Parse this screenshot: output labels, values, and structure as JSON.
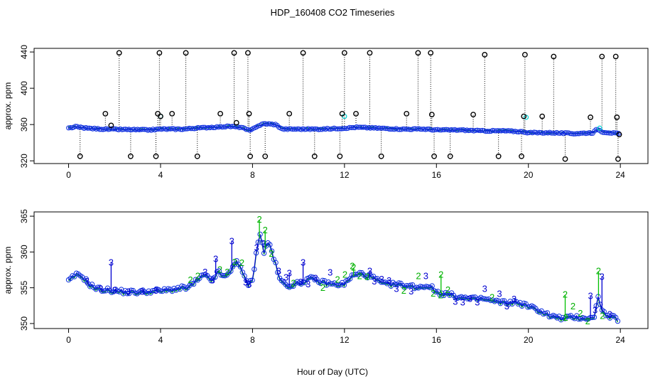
{
  "title": "HDP_160408  CO2 Timeseries",
  "xlabel": "Hour of Day (UTC)",
  "chart_data": [
    {
      "type": "scatter",
      "panel": "top",
      "ylabel": "approx. ppm",
      "xlim": [
        -1.5,
        25.2
      ],
      "ylim": [
        317,
        444
      ],
      "xticks": [
        0,
        4,
        8,
        12,
        16,
        20,
        24
      ],
      "yticks": [
        320,
        360,
        400,
        440
      ],
      "baseline": [
        [
          0.0,
          356
        ],
        [
          0.3,
          357.5
        ],
        [
          0.8,
          356
        ],
        [
          1.5,
          355
        ],
        [
          2.5,
          354.5
        ],
        [
          3.5,
          354
        ],
        [
          4.0,
          355
        ],
        [
          5.0,
          355
        ],
        [
          5.5,
          356
        ],
        [
          6.2,
          357
        ],
        [
          7.0,
          358
        ],
        [
          7.5,
          357
        ],
        [
          7.9,
          353
        ],
        [
          8.1,
          357
        ],
        [
          8.5,
          361
        ],
        [
          9.0,
          360
        ],
        [
          9.3,
          355
        ],
        [
          10.0,
          355
        ],
        [
          11.0,
          355
        ],
        [
          12.0,
          356
        ],
        [
          12.5,
          357
        ],
        [
          13.5,
          356
        ],
        [
          14.5,
          355
        ],
        [
          15.5,
          355
        ],
        [
          16.0,
          354
        ],
        [
          17.0,
          354
        ],
        [
          18.0,
          353
        ],
        [
          19.0,
          353
        ],
        [
          19.8,
          352
        ],
        [
          20.0,
          351
        ],
        [
          21.0,
          351
        ],
        [
          22.0,
          350
        ],
        [
          22.8,
          351
        ],
        [
          23.0,
          355
        ],
        [
          23.2,
          352
        ],
        [
          23.9,
          350
        ]
      ],
      "spikes": [
        {
          "x": 0.5,
          "y": 325
        },
        {
          "x": 1.6,
          "y": 372
        },
        {
          "x": 1.85,
          "y": 359
        },
        {
          "x": 2.2,
          "y": 439
        },
        {
          "x": 2.7,
          "y": 325
        },
        {
          "x": 3.8,
          "y": 325
        },
        {
          "x": 3.88,
          "y": 372
        },
        {
          "x": 3.95,
          "y": 439
        },
        {
          "x": 4.0,
          "y": 369
        },
        {
          "x": 4.5,
          "y": 372
        },
        {
          "x": 5.1,
          "y": 439
        },
        {
          "x": 5.6,
          "y": 325
        },
        {
          "x": 6.6,
          "y": 372
        },
        {
          "x": 7.2,
          "y": 439
        },
        {
          "x": 7.3,
          "y": 362
        },
        {
          "x": 7.8,
          "y": 439
        },
        {
          "x": 7.85,
          "y": 372
        },
        {
          "x": 7.9,
          "y": 325
        },
        {
          "x": 8.55,
          "y": 325
        },
        {
          "x": 9.6,
          "y": 372
        },
        {
          "x": 10.2,
          "y": 439
        },
        {
          "x": 10.7,
          "y": 325
        },
        {
          "x": 11.8,
          "y": 325
        },
        {
          "x": 11.9,
          "y": 372
        },
        {
          "x": 12.0,
          "y": 439
        },
        {
          "x": 12.5,
          "y": 372
        },
        {
          "x": 13.1,
          "y": 439
        },
        {
          "x": 13.6,
          "y": 325
        },
        {
          "x": 14.7,
          "y": 372
        },
        {
          "x": 15.2,
          "y": 439
        },
        {
          "x": 15.75,
          "y": 439
        },
        {
          "x": 15.8,
          "y": 371
        },
        {
          "x": 15.9,
          "y": 325
        },
        {
          "x": 16.6,
          "y": 325
        },
        {
          "x": 17.6,
          "y": 371
        },
        {
          "x": 18.1,
          "y": 437
        },
        {
          "x": 18.7,
          "y": 325
        },
        {
          "x": 19.7,
          "y": 325
        },
        {
          "x": 19.8,
          "y": 369
        },
        {
          "x": 19.85,
          "y": 437
        },
        {
          "x": 20.6,
          "y": 369
        },
        {
          "x": 21.1,
          "y": 435
        },
        {
          "x": 21.6,
          "y": 322
        },
        {
          "x": 22.7,
          "y": 368
        },
        {
          "x": 23.2,
          "y": 435
        },
        {
          "x": 23.8,
          "y": 435
        },
        {
          "x": 23.85,
          "y": 368
        },
        {
          "x": 23.9,
          "y": 322
        },
        {
          "x": 23.95,
          "y": 349
        }
      ]
    },
    {
      "type": "scatter",
      "panel": "bottom",
      "ylabel": "approx. ppm",
      "xlim": [
        -1.5,
        25.2
      ],
      "ylim": [
        349.3,
        365.6
      ],
      "xticks": [
        0,
        4,
        8,
        12,
        16,
        20,
        24
      ],
      "yticks": [
        350,
        355,
        360,
        365
      ],
      "legend_markers": [
        "2",
        "3"
      ],
      "baseline": [
        [
          0.0,
          355.9
        ],
        [
          0.3,
          356.8
        ],
        [
          0.6,
          356.6
        ],
        [
          0.9,
          355.5
        ],
        [
          1.2,
          354.9
        ],
        [
          1.6,
          354.7
        ],
        [
          2.0,
          354.6
        ],
        [
          2.5,
          354.4
        ],
        [
          3.0,
          354.4
        ],
        [
          3.5,
          354.5
        ],
        [
          3.9,
          354.6
        ],
        [
          4.2,
          354.6
        ],
        [
          4.7,
          354.9
        ],
        [
          5.2,
          355.0
        ],
        [
          5.5,
          355.8
        ],
        [
          5.9,
          356.8
        ],
        [
          6.2,
          356.0
        ],
        [
          6.5,
          357.2
        ],
        [
          6.8,
          356.5
        ],
        [
          7.0,
          357.0
        ],
        [
          7.3,
          359.0
        ],
        [
          7.5,
          357.5
        ],
        [
          7.8,
          355.5
        ],
        [
          8.0,
          356.0
        ],
        [
          8.2,
          361.0
        ],
        [
          8.35,
          362.5
        ],
        [
          8.5,
          360.0
        ],
        [
          8.7,
          361.5
        ],
        [
          8.9,
          359.5
        ],
        [
          9.2,
          356.0
        ],
        [
          9.5,
          355.3
        ],
        [
          10.0,
          355.6
        ],
        [
          10.5,
          356.3
        ],
        [
          11.0,
          355.8
        ],
        [
          11.5,
          355.5
        ],
        [
          12.0,
          355.5
        ],
        [
          12.3,
          356.6
        ],
        [
          12.7,
          357.0
        ],
        [
          13.2,
          356.5
        ],
        [
          13.7,
          355.5
        ],
        [
          14.2,
          355.5
        ],
        [
          14.7,
          355.3
        ],
        [
          15.2,
          355.1
        ],
        [
          15.7,
          355.3
        ],
        [
          16.0,
          354.4
        ],
        [
          16.5,
          354.1
        ],
        [
          17.0,
          353.7
        ],
        [
          17.5,
          353.4
        ],
        [
          18.0,
          353.5
        ],
        [
          18.5,
          353.1
        ],
        [
          19.0,
          352.9
        ],
        [
          19.5,
          353.0
        ],
        [
          20.0,
          352.4
        ],
        [
          20.5,
          351.8
        ],
        [
          21.0,
          351.0
        ],
        [
          21.5,
          350.7
        ],
        [
          22.0,
          350.9
        ],
        [
          22.5,
          350.8
        ],
        [
          22.9,
          350.7
        ],
        [
          23.0,
          354.5
        ],
        [
          23.2,
          351.7
        ],
        [
          23.5,
          351.0
        ],
        [
          23.9,
          350.6
        ]
      ],
      "spikes": [
        {
          "x": 1.85,
          "y": 358.5,
          "m": "3"
        },
        {
          "x": 6.4,
          "y": 359.0,
          "m": "3"
        },
        {
          "x": 7.1,
          "y": 361.5,
          "m": "3"
        },
        {
          "x": 7.7,
          "y": 355.7,
          "m": "3"
        },
        {
          "x": 8.3,
          "y": 364.5,
          "m": "2"
        },
        {
          "x": 8.55,
          "y": 363.0,
          "m": "2"
        },
        {
          "x": 9.6,
          "y": 357.0,
          "m": "3"
        },
        {
          "x": 10.2,
          "y": 358.5,
          "m": "3"
        },
        {
          "x": 12.4,
          "y": 357.8,
          "m": "2"
        },
        {
          "x": 13.1,
          "y": 357.3,
          "m": "3"
        },
        {
          "x": 16.2,
          "y": 356.8,
          "m": "2"
        },
        {
          "x": 21.6,
          "y": 354.0,
          "m": "2"
        },
        {
          "x": 22.7,
          "y": 353.8,
          "m": "3"
        },
        {
          "x": 23.05,
          "y": 357.3,
          "m": "2"
        },
        {
          "x": 23.2,
          "y": 356.5,
          "m": "3"
        }
      ]
    }
  ]
}
